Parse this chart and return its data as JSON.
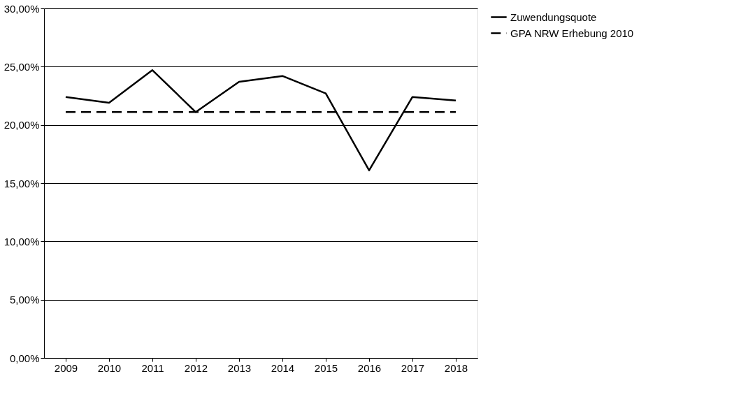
{
  "chart_data": {
    "type": "line",
    "categories": [
      "2009",
      "2010",
      "2011",
      "2012",
      "2013",
      "2014",
      "2015",
      "2016",
      "2017",
      "2018"
    ],
    "series": [
      {
        "name": "Zuwendungsquote",
        "color": "#000000",
        "line_style": "solid",
        "values": [
          22.4,
          21.9,
          24.7,
          21.1,
          23.7,
          24.2,
          22.7,
          16.1,
          22.4,
          22.1
        ]
      },
      {
        "name": "GPA NRW Erhebung 2010",
        "color": "#000000",
        "line_style": "dashed",
        "values": [
          21.1,
          21.1,
          21.1,
          21.1,
          21.1,
          21.1,
          21.1,
          21.1,
          21.1,
          21.1
        ]
      }
    ],
    "ylim": [
      0,
      30
    ],
    "yticks": [
      {
        "value": 0,
        "label": "0,00%"
      },
      {
        "value": 5,
        "label": "5,00%"
      },
      {
        "value": 10,
        "label": "10,00%"
      },
      {
        "value": 15,
        "label": "15,00%"
      },
      {
        "value": 20,
        "label": "20,00%"
      },
      {
        "value": 25,
        "label": "25,00%"
      },
      {
        "value": 30,
        "label": "30,00%"
      }
    ],
    "grid": "y",
    "legend": "right",
    "marker": "none"
  }
}
